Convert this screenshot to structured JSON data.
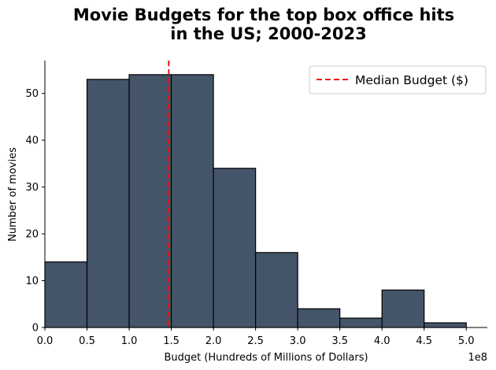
{
  "chart_data": {
    "type": "bar",
    "title_lines": [
      "Movie Budgets for the top box office hits",
      "in the US; 2000-2023"
    ],
    "xlabel": "Budget (Hundreds of Millions of Dollars)",
    "ylabel": "Number of movies",
    "x_offset_label": "1e8",
    "bin_edges": [
      0.0,
      0.5,
      1.0,
      1.5,
      2.0,
      2.5,
      3.0,
      3.5,
      4.0,
      4.5,
      5.0
    ],
    "values": [
      14,
      53,
      54,
      54,
      34,
      16,
      4,
      2,
      8,
      1
    ],
    "xlim": [
      0.0,
      5.25
    ],
    "ylim": [
      0,
      57
    ],
    "x_ticks": [
      0.0,
      0.5,
      1.0,
      1.5,
      2.0,
      2.5,
      3.0,
      3.5,
      4.0,
      4.5,
      5.0
    ],
    "x_tick_labels": [
      "0.0",
      "0.5",
      "1.0",
      "1.5",
      "2.0",
      "2.5",
      "3.0",
      "3.5",
      "4.0",
      "4.5",
      "5.0"
    ],
    "y_ticks": [
      0,
      10,
      20,
      30,
      40,
      50
    ],
    "y_tick_labels": [
      "0",
      "10",
      "20",
      "30",
      "40",
      "50"
    ],
    "median": 1.47,
    "legend": {
      "label": "Median Budget ($)",
      "position": "top-right"
    },
    "grid": false,
    "colors": {
      "bar_fill": "#445469",
      "bar_edge": "#000000",
      "median_line": "#ee1111"
    }
  }
}
